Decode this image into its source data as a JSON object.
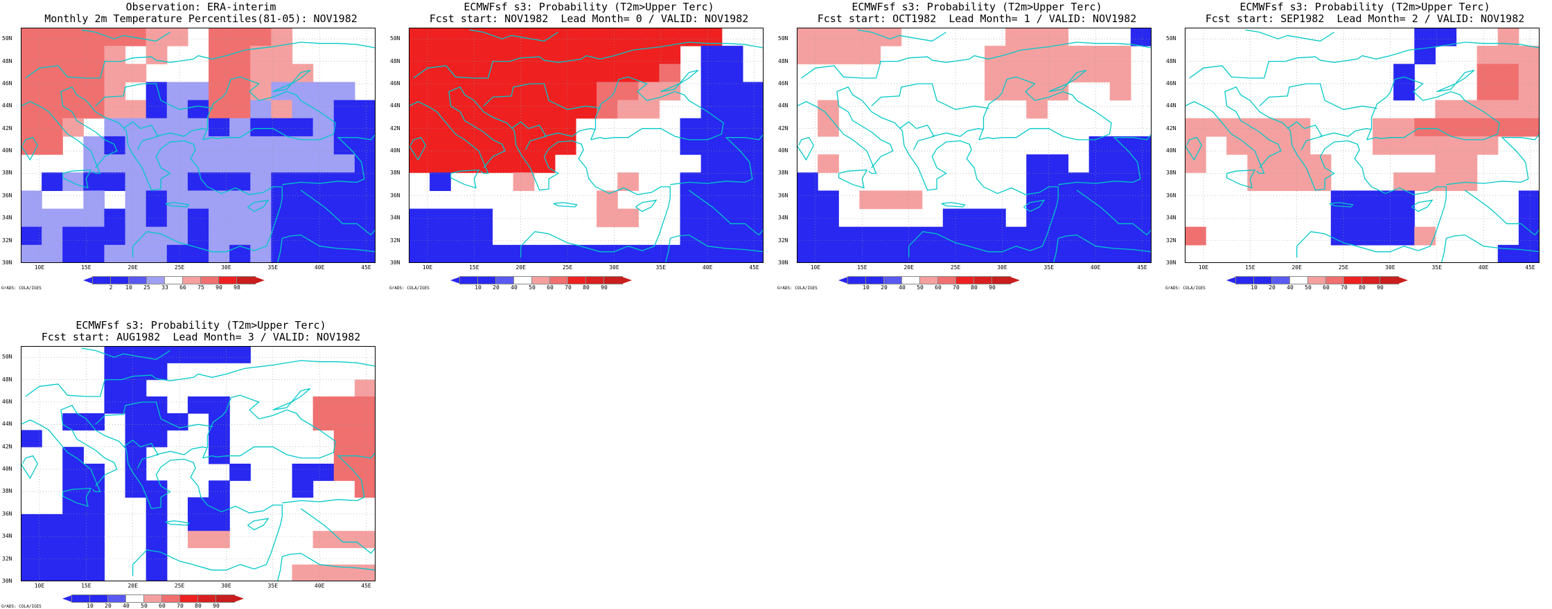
{
  "colors": {
    "blue_dark": "#2828f0",
    "blue_mid": "#5a5af0",
    "blue_light": "#a0a0f5",
    "red_light": "#f5a0a0",
    "red_mid": "#f07070",
    "red_strong": "#ef2020",
    "red_dark": "#c81e1e",
    "coast": "#00c8c8",
    "white": "#ffffff"
  },
  "axes": {
    "lat_labels": [
      "50N",
      "48N",
      "46N",
      "44N",
      "42N",
      "40N",
      "38N",
      "36N",
      "34N",
      "32N",
      "30N"
    ],
    "lon_labels": [
      "10E",
      "15E",
      "20E",
      "25E",
      "30E",
      "35E",
      "40E",
      "45E"
    ],
    "lon_range": [
      8,
      46
    ],
    "lat_range": [
      30,
      51
    ]
  },
  "panels": [
    {
      "title_line1": "Observation: ERA-interim",
      "title_line2": "Monthly 2m Temperature Percentiles(81-05): NOV1982",
      "colorbar": {
        "labels": [
          "2",
          "10",
          "25",
          "33",
          "66",
          "75",
          "90",
          "98"
        ],
        "colors": [
          "#2828f0",
          "#5a5af0",
          "#a0a0f5",
          "#ffffff",
          "#f5a0a0",
          "#f07070",
          "#ef2020",
          "#c81e1e"
        ]
      },
      "credit": "GrADS: COLA/IGES",
      "grid": [
        "MMMMMMLL.MMML....",
        "MMMML.L..MMLL....",
        "MMMMLL...MMLLL...",
        "MMMML.BbbMMLbbbb.",
        "MMMMLLBbBMMbLbbBB",
        "MML.bbbbbBbBBBbBB",
        "MM.bBbbbbbbbbbbBB",
        "...bbbbbbbbbbbbbB",
        ".BbBBbbbBBBbBBBBB",
        "b..b.bBbbbbbBBBBB",
        "bbbbBbBbBbbbBBBBB",
        "BbBBBbbbBbbbBBBBB",
        "bbBBbbbBBbBbBBBBB"
      ]
    },
    {
      "title_line1": "ECMWFsf s3: Probability (T2m>Upper Terc)",
      "title_line2": "Fcst start: NOV1982  Lead Month= 0 / VALID: NOV1982",
      "colorbar": {
        "labels": [
          "10",
          "20",
          "40",
          "50",
          "60",
          "70",
          "80",
          "90"
        ],
        "colors": [
          "#2828f0",
          "#5a5af0",
          "#ffffff",
          "#f5a0a0",
          "#f07070",
          "#ef2020",
          "#d82020",
          "#c81e1e"
        ]
      },
      "credit": "GrADS: COLA/IGES",
      "grid": [
        "RRRRRRRRRRRRRRR..",
        "RRRRRRRRRRRRR.BB.",
        "RRRRRRRRRRRRM.BB.",
        "RRRRRRRRRMMLL.BBB",
        "RRRRRRRRRMLL..BBB",
        "RRRRRRRR.....BBBB",
        "RRRRRRRR.....BBBB",
        "RRRRRRR.......BBB",
        ".B...L....L..BBBB",
        ".........L...BBBB",
        "BBBB.....LL..BBBB",
        "BBBB.........BBBB",
        "BBBBBBBBBBBBBBBBB"
      ]
    },
    {
      "title_line1": "ECMWFsf s3: Probability (T2m>Upper Terc)",
      "title_line2": "Fcst start: OCT1982  Lead Month= 1 / VALID: NOV1982",
      "colorbar": {
        "labels": [
          "10",
          "20",
          "40",
          "50",
          "60",
          "70",
          "80",
          "90"
        ],
        "colors": [
          "#2828f0",
          "#5a5af0",
          "#ffffff",
          "#f5a0a0",
          "#f07070",
          "#ef2020",
          "#d82020",
          "#c81e1e"
        ]
      },
      "credit": "GrADS: COLA/IGES",
      "grid": [
        "LLLLL.....LLL...B",
        "LLLL.....LLLLLLL.",
        ".........LLLLLLL.",
        ".........LLLL..L.",
        ".L.........L.....",
        ".L...............",
        "..............BBB",
        ".L.........BB.BBB",
        "B..........BBBBBB",
        "BB.LLL.....BBBBBB",
        "BB.....BBB.BBBBBB",
        "BBBBBBBBBBBBBBBBB",
        "BBBBBBBBBBBBBBBBB"
      ]
    },
    {
      "title_line1": "ECMWFsf s3: Probability (T2m>Upper Terc)",
      "title_line2": "Fcst start: SEP1982  Lead Month= 2 / VALID: NOV1982",
      "colorbar": {
        "labels": [
          "10",
          "20",
          "40",
          "50",
          "60",
          "70",
          "80",
          "90"
        ],
        "colors": [
          "#2828f0",
          "#5a5af0",
          "#ffffff",
          "#f5a0a0",
          "#f07070",
          "#ef2020",
          "#d82020",
          "#c81e1e"
        ]
      },
      "credit": "GrADS: COLA/IGES",
      "grid": [
        "...........BB..L.",
        "...........B..LLL",
        "..........B...MML",
        "..........B...MML",
        "............LLLLL",
        "LLLLLL...LLMMMMMM",
        "L.LLLL...LLLLLL..",
        "L..LLLL.....LL...",
        "...LLLL...LLLL...",
        ".......BBBB.....B",
        ".......BBBB.....B",
        "M......BBBBL....B",
        "...............BB"
      ]
    },
    {
      "title_line1": "ECMWFsf s3: Probability (T2m>Upper Terc)",
      "title_line2": "Fcst start: AUG1982  Lead Month= 3 / VALID: NOV1982",
      "colorbar": {
        "labels": [
          "10",
          "20",
          "40",
          "50",
          "60",
          "70",
          "80",
          "90"
        ],
        "colors": [
          "#2828f0",
          "#5a5af0",
          "#ffffff",
          "#f5a0a0",
          "#f07070",
          "#ef2020",
          "#d82020",
          "#c81e1e"
        ]
      },
      "credit": "GrADS: COLA/IGES",
      "grid": [
        "....BBBBBBB......",
        "....BBB..........",
        "....BB..........L",
        "....BBB.BB....MMM",
        "..BB.BBB.B....MMM",
        "B....BB..B.....MM",
        "..B..B...B.....MM",
        "..BB.B....B..BBMM",
        "..BB.BB..B...B..M",
        "..BB..B.BB.......",
        "BBBB..B.BB.......",
        "BBBB..B.LL....LLL",
        "BBBB..B..........",
        "BBBB..B......LLLL"
      ]
    }
  ]
}
